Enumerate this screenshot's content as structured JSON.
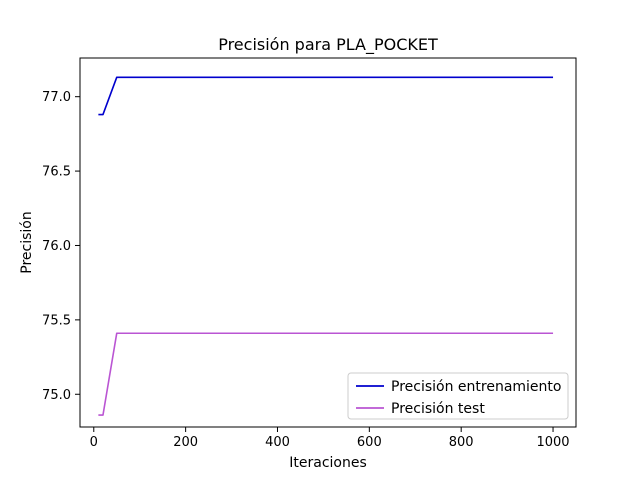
{
  "chart_data": {
    "type": "line",
    "title": "Precisión para PLA_POCKET",
    "xlabel": "Iteraciones",
    "ylabel": "Precisión",
    "xlim": [
      -30,
      1050
    ],
    "ylim": [
      74.78,
      77.26
    ],
    "xticks": [
      0,
      200,
      400,
      600,
      800,
      1000
    ],
    "xtick_labels": [
      "0",
      "200",
      "400",
      "600",
      "800",
      "1000"
    ],
    "yticks": [
      75.0,
      75.5,
      76.0,
      76.5,
      77.0
    ],
    "ytick_labels": [
      "75.0",
      "75.5",
      "76.0",
      "76.5",
      "77.0"
    ],
    "grid": false,
    "legend_position": "lower-right",
    "series": [
      {
        "name": "Precisión entrenamiento",
        "color": "#0000cd",
        "x": [
          10,
          20,
          50,
          100,
          200,
          300,
          400,
          500,
          600,
          700,
          800,
          900,
          1000
        ],
        "y": [
          76.88,
          76.88,
          77.13,
          77.13,
          77.13,
          77.13,
          77.13,
          77.13,
          77.13,
          77.13,
          77.13,
          77.13,
          77.13
        ]
      },
      {
        "name": "Precisión test",
        "color": "#ba55d3",
        "x": [
          10,
          20,
          50,
          100,
          200,
          300,
          400,
          500,
          600,
          700,
          800,
          900,
          1000
        ],
        "y": [
          74.86,
          74.86,
          75.41,
          75.41,
          75.41,
          75.41,
          75.41,
          75.41,
          75.41,
          75.41,
          75.41,
          75.41,
          75.41
        ]
      }
    ]
  }
}
